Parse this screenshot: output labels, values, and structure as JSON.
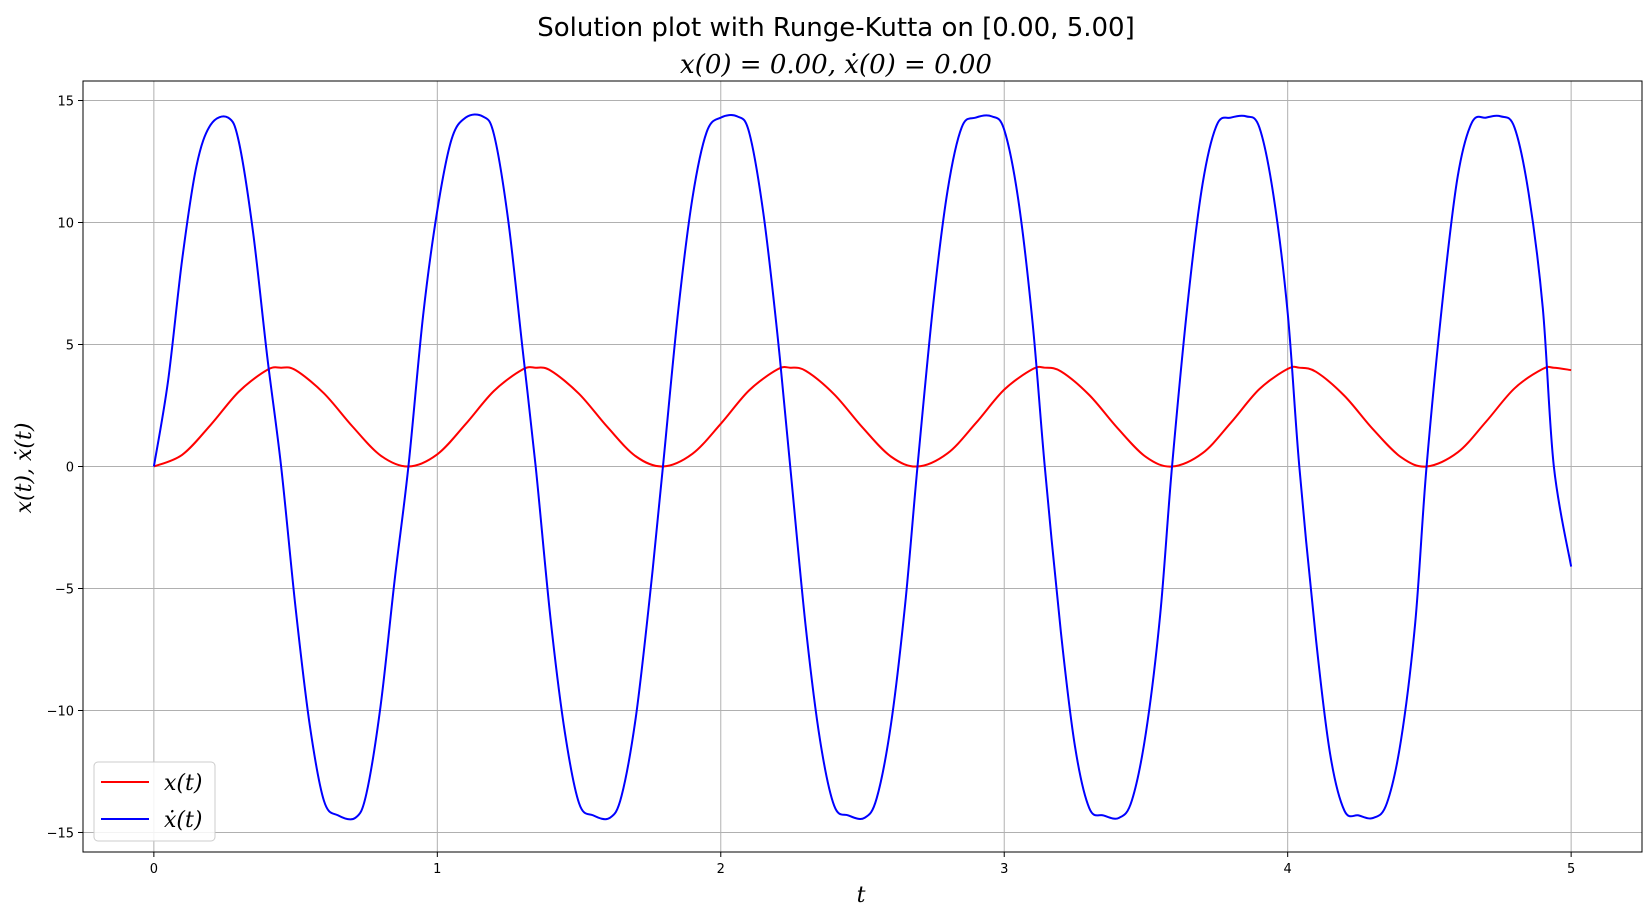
{
  "chart_data": {
    "type": "line",
    "title_line1": "Solution plot with Runge-Kutta on [0.00, 5.00]",
    "title_line2": "x(0) = 0.00, ẋ(0) = 0.00",
    "xlabel": "t",
    "ylabel": "x(t), ẋ(t)",
    "xlim": [
      -0.25,
      5.25
    ],
    "ylim": [
      -15.8,
      15.8
    ],
    "xticks": [
      0,
      1,
      2,
      3,
      4,
      5
    ],
    "xtick_labels": [
      "0",
      "1",
      "2",
      "3",
      "4",
      "5"
    ],
    "yticks": [
      -15,
      -10,
      -5,
      0,
      5,
      10,
      15
    ],
    "ytick_labels": [
      "−15",
      "−10",
      "−5",
      "0",
      "5",
      "10",
      "15"
    ],
    "grid": true,
    "legend_position": "lower-left",
    "period": 0.898,
    "series": [
      {
        "name": "x(t)",
        "color": "#ff0000",
        "x": [
          0,
          0.1,
          0.2,
          0.3,
          0.4,
          0.449,
          0.5,
          0.6,
          0.7,
          0.8,
          0.898,
          1.0,
          1.1,
          1.2,
          1.3,
          1.347,
          1.4,
          1.5,
          1.6,
          1.7,
          1.796,
          1.9,
          2.0,
          2.1,
          2.2,
          2.245,
          2.3,
          2.4,
          2.5,
          2.6,
          2.694,
          2.8,
          2.9,
          3.0,
          3.1,
          3.143,
          3.2,
          3.3,
          3.4,
          3.5,
          3.592,
          3.7,
          3.8,
          3.9,
          4.0,
          4.041,
          4.1,
          4.2,
          4.3,
          4.4,
          4.49,
          4.6,
          4.7,
          4.8,
          4.9,
          4.939,
          5.0
        ],
        "y": [
          0.0,
          0.48,
          1.7,
          3.07,
          3.96,
          4.05,
          3.95,
          3.0,
          1.65,
          0.45,
          0.0,
          0.5,
          1.74,
          3.1,
          3.97,
          4.05,
          3.93,
          2.98,
          1.62,
          0.42,
          0.0,
          0.52,
          1.75,
          3.12,
          3.98,
          4.05,
          3.92,
          2.96,
          1.6,
          0.41,
          0.0,
          0.54,
          1.78,
          3.15,
          3.99,
          4.05,
          3.9,
          2.93,
          1.57,
          0.39,
          0.0,
          0.55,
          1.8,
          3.17,
          4.0,
          4.05,
          3.88,
          2.9,
          1.54,
          0.38,
          0.0,
          0.58,
          1.84,
          3.2,
          4.0,
          4.05,
          3.95
        ]
      },
      {
        "name": "ẋ(t)",
        "color": "#0000ff",
        "x": [
          0,
          0.05,
          0.1,
          0.15,
          0.2,
          0.262,
          0.3,
          0.35,
          0.4,
          0.449,
          0.5,
          0.55,
          0.6,
          0.65,
          0.711,
          0.75,
          0.8,
          0.85,
          0.898,
          0.95,
          1.0,
          1.05,
          1.1,
          1.16,
          1.2,
          1.25,
          1.3,
          1.347,
          1.4,
          1.45,
          1.5,
          1.55,
          1.609,
          1.65,
          1.7,
          1.75,
          1.796,
          1.85,
          1.9,
          1.95,
          2.0,
          2.058,
          2.1,
          2.15,
          2.2,
          2.245,
          2.3,
          2.35,
          2.4,
          2.45,
          2.507,
          2.55,
          2.6,
          2.65,
          2.694,
          2.75,
          2.8,
          2.85,
          2.9,
          2.956,
          3.0,
          3.05,
          3.1,
          3.143,
          3.2,
          3.25,
          3.3,
          3.35,
          3.405,
          3.45,
          3.5,
          3.55,
          3.592,
          3.65,
          3.7,
          3.75,
          3.8,
          3.854,
          3.9,
          3.95,
          4.0,
          4.041,
          4.1,
          4.15,
          4.2,
          4.25,
          4.303,
          4.35,
          4.4,
          4.45,
          4.49,
          4.55,
          4.6,
          4.65,
          4.7,
          4.752,
          4.8,
          4.85,
          4.9,
          4.939,
          5.0
        ],
        "y": [
          0.0,
          3.5,
          8.5,
          12.3,
          14.0,
          14.3,
          13.3,
          9.6,
          4.5,
          0.0,
          -5.8,
          -10.6,
          -13.7,
          -14.3,
          -14.4,
          -13.4,
          -9.8,
          -4.6,
          0.0,
          6.2,
          10.5,
          13.4,
          14.3,
          14.35,
          13.6,
          10.1,
          4.9,
          0.0,
          -6.3,
          -10.9,
          -13.8,
          -14.3,
          -14.4,
          -13.5,
          -10.3,
          -5.3,
          0.0,
          6.4,
          11.0,
          13.7,
          14.3,
          14.35,
          13.7,
          10.4,
          5.4,
          0.0,
          -6.6,
          -11.2,
          -13.9,
          -14.3,
          -14.4,
          -13.6,
          -10.6,
          -5.7,
          0.0,
          6.7,
          11.3,
          13.9,
          14.3,
          14.35,
          13.8,
          10.9,
          5.9,
          0.0,
          -6.8,
          -11.5,
          -14.0,
          -14.3,
          -14.4,
          -13.7,
          -10.9,
          -6.1,
          0.0,
          7.0,
          11.6,
          14.0,
          14.3,
          14.35,
          13.9,
          11.1,
          6.3,
          0.0,
          -7.1,
          -11.8,
          -14.1,
          -14.3,
          -14.4,
          -13.8,
          -11.2,
          -6.4,
          0.0,
          7.2,
          11.9,
          14.1,
          14.3,
          14.35,
          13.9,
          11.2,
          6.5,
          0.0,
          -4.1
        ]
      }
    ]
  }
}
